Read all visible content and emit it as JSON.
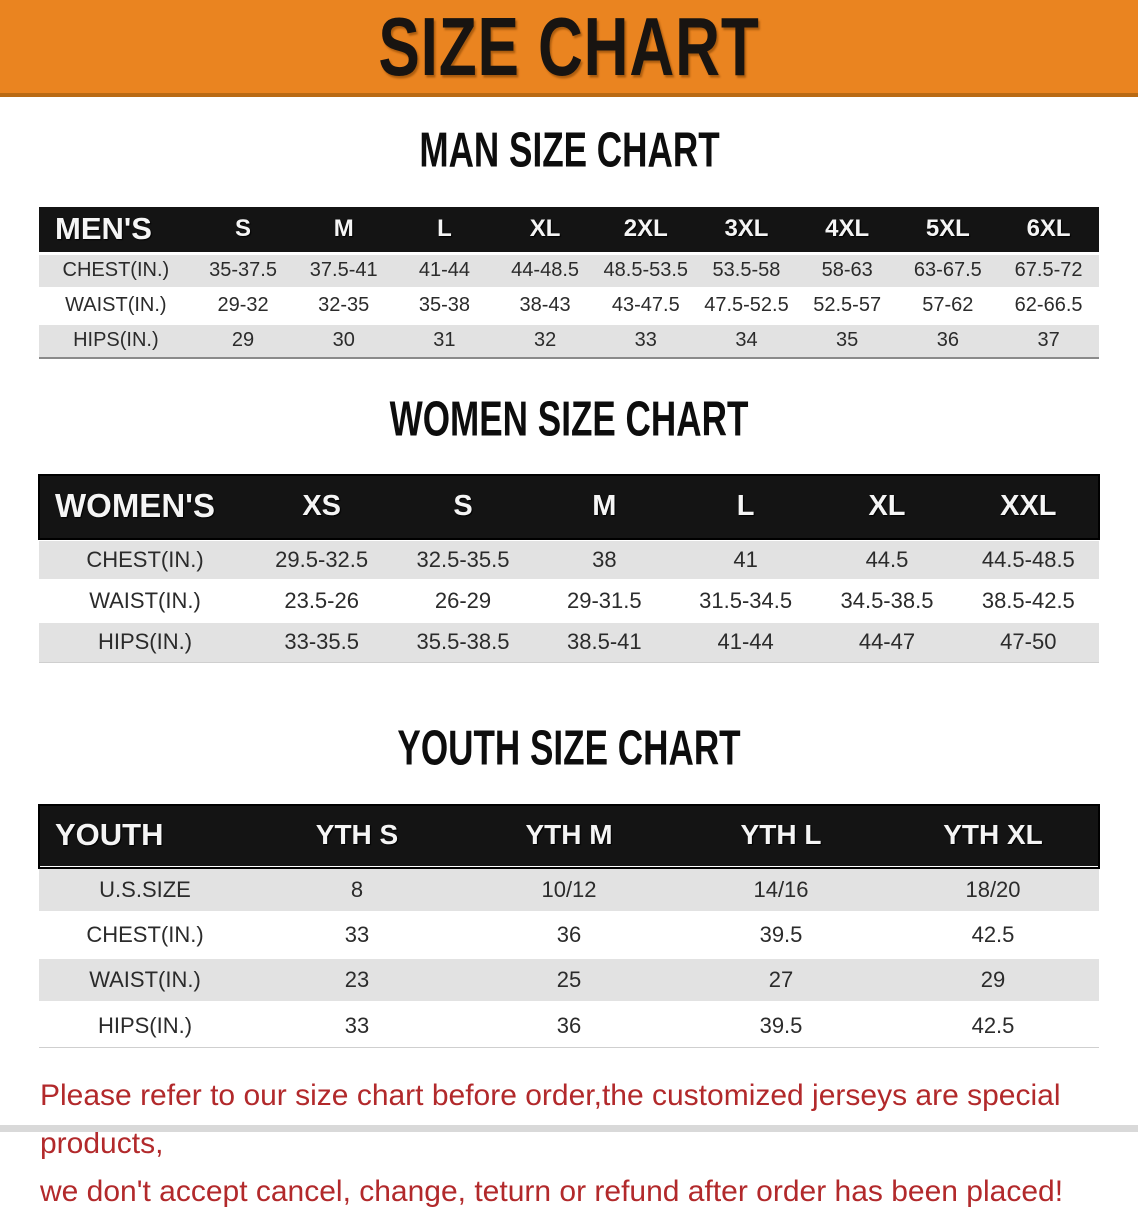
{
  "banner": {
    "title": "SIZE CHART"
  },
  "colors": {
    "banner_orange": "#EA8420",
    "header_black": "#141414",
    "row_gray": "#E2E2E2",
    "note_red": "#B2292B"
  },
  "sections": [
    {
      "heading": "MAN SIZE CHART",
      "table": {
        "header": [
          "MEN'S",
          "S",
          "M",
          "L",
          "XL",
          "2XL",
          "3XL",
          "4XL",
          "5XL",
          "6XL"
        ],
        "rows": [
          {
            "label": "CHEST(IN.)",
            "shade": "gray",
            "values": [
              "35-37.5",
              "37.5-41",
              "41-44",
              "44-48.5",
              "48.5-53.5",
              "53.5-58",
              "58-63",
              "63-67.5",
              "67.5-72"
            ]
          },
          {
            "label": "WAIST(IN.)",
            "shade": "white",
            "values": [
              "29-32",
              "32-35",
              "35-38",
              "38-43",
              "43-47.5",
              "47.5-52.5",
              "52.5-57",
              "57-62",
              "62-66.5"
            ]
          },
          {
            "label": "HIPS(IN.)",
            "shade": "gray",
            "values": [
              "29",
              "30",
              "31",
              "32",
              "33",
              "34",
              "35",
              "36",
              "37"
            ]
          }
        ]
      }
    },
    {
      "heading": "WOMEN SIZE CHART",
      "table": {
        "header": [
          "WOMEN'S",
          "XS",
          "S",
          "M",
          "L",
          "XL",
          "XXL"
        ],
        "rows": [
          {
            "label": "CHEST(IN.)",
            "shade": "gray",
            "values": [
              "29.5-32.5",
              "32.5-35.5",
              "38",
              "41",
              "44.5",
              "44.5-48.5"
            ]
          },
          {
            "label": "WAIST(IN.)",
            "shade": "white",
            "values": [
              "23.5-26",
              "26-29",
              "29-31.5",
              "31.5-34.5",
              "34.5-38.5",
              "38.5-42.5"
            ]
          },
          {
            "label": "HIPS(IN.)",
            "shade": "gray",
            "values": [
              "33-35.5",
              "35.5-38.5",
              "38.5-41",
              "41-44",
              "44-47",
              "47-50"
            ]
          }
        ]
      }
    },
    {
      "heading": "YOUTH SIZE CHART",
      "table": {
        "header": [
          "YOUTH",
          "YTH S",
          "YTH M",
          "YTH L",
          "YTH XL"
        ],
        "rows": [
          {
            "label": "U.S.SIZE",
            "shade": "gray",
            "values": [
              "8",
              "10/12",
              "14/16",
              "18/20"
            ]
          },
          {
            "label": "CHEST(IN.)",
            "shade": "white",
            "values": [
              "33",
              "36",
              "39.5",
              "42.5"
            ]
          },
          {
            "label": "WAIST(IN.)",
            "shade": "gray",
            "values": [
              "23",
              "25",
              "27",
              "29"
            ]
          },
          {
            "label": "HIPS(IN.)",
            "shade": "white",
            "values": [
              "33",
              "36",
              "39.5",
              "42.5"
            ]
          }
        ]
      }
    }
  ],
  "note": {
    "line1": "Please refer to our size chart before order,the customized jerseys are special products,",
    "line2": "we don't accept cancel, change, teturn or refund after order has been placed!"
  }
}
